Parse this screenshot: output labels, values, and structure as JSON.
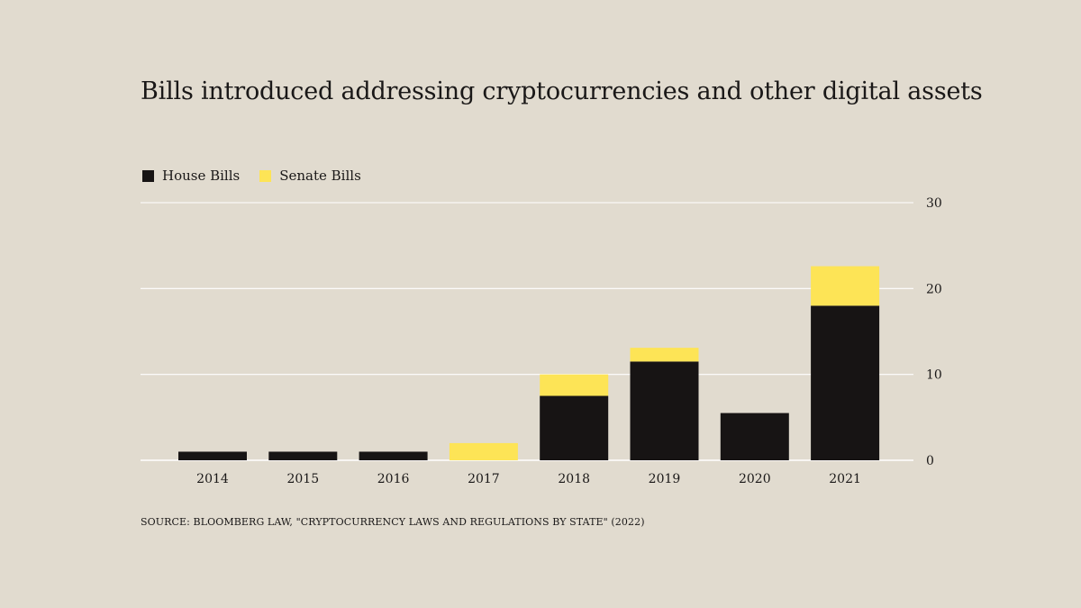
{
  "page": {
    "background": "#e1dbcf",
    "title": "Bills introduced addressing cryptocurrencies and other digital assets",
    "source": "SOURCE: BLOOMBERG LAW, \"CRYPTOCURRENCY LAWS AND REGULATIONS BY STATE\" (2022)"
  },
  "legend": {
    "items": [
      {
        "label": "House Bills",
        "color": "#171414"
      },
      {
        "label": "Senate Bills",
        "color": "#fde456"
      }
    ]
  },
  "chart_data": {
    "type": "bar",
    "stacked": true,
    "title": "Bills introduced addressing cryptocurrencies and other digital assets",
    "xlabel": "",
    "ylabel": "",
    "categories": [
      "2014",
      "2015",
      "2016",
      "2017",
      "2018",
      "2019",
      "2020",
      "2021"
    ],
    "series": [
      {
        "name": "House Bills",
        "color": "#171414",
        "values": [
          1,
          1,
          1,
          0,
          7.5,
          11.5,
          5.5,
          18
        ]
      },
      {
        "name": "Senate Bills",
        "color": "#fde456",
        "values": [
          0,
          0,
          0,
          2,
          2.5,
          1.6,
          0,
          4.6
        ]
      }
    ],
    "ylim": [
      0,
      30
    ],
    "yticks": [
      0,
      10,
      20,
      30
    ],
    "y_axis_position": "right",
    "grid": true,
    "legend_position": "top-left"
  }
}
